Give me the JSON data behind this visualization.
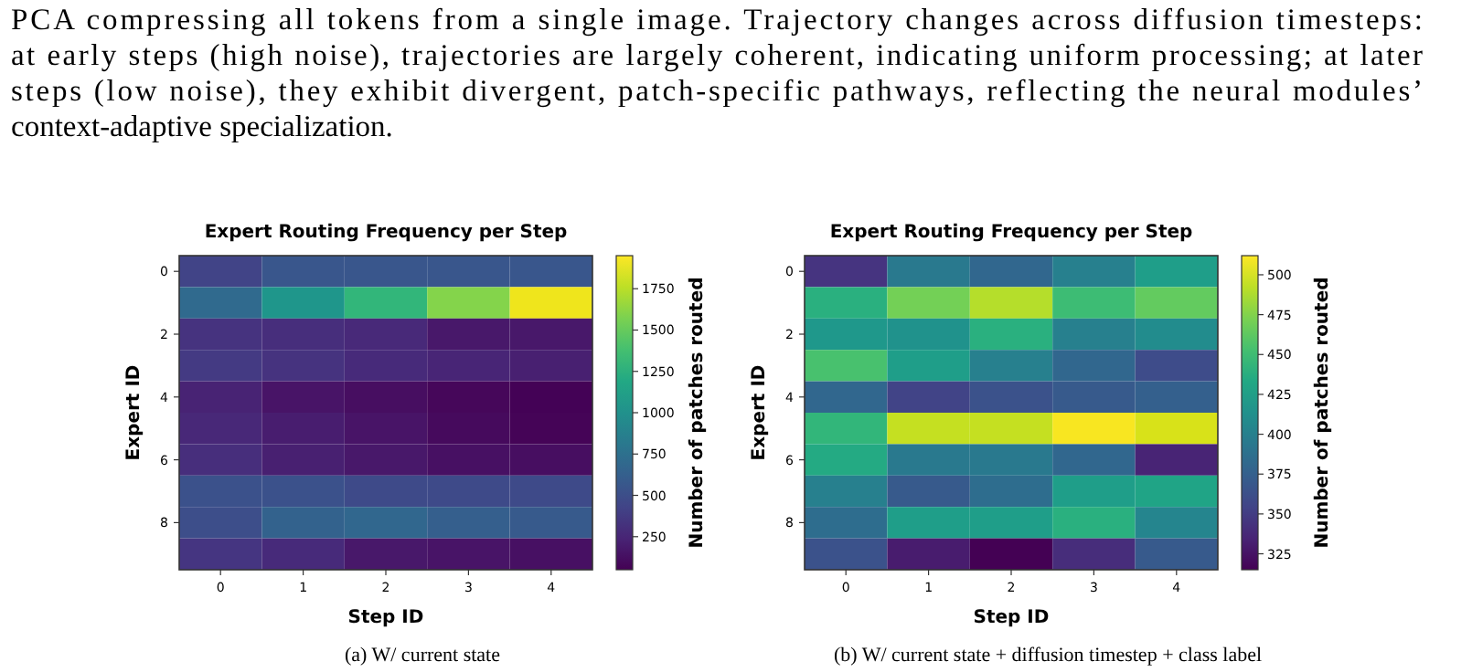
{
  "chart_data": [
    {
      "type": "heatmap",
      "title": "Expert Routing Frequency per Step",
      "xlabel": "Step ID",
      "ylabel": "Expert ID",
      "clabel": "Number of patches routed",
      "categories": [
        "0",
        "1",
        "2",
        "3",
        "4"
      ],
      "y_categories": [
        "0",
        null,
        "2",
        null,
        "4",
        null,
        "6",
        null,
        "8",
        null
      ],
      "cells": [
        [
          430,
          560,
          560,
          560,
          560
        ],
        [
          700,
          1050,
          1300,
          1600,
          1900
        ],
        [
          330,
          300,
          270,
          170,
          170
        ],
        [
          370,
          330,
          280,
          250,
          220
        ],
        [
          230,
          150,
          120,
          80,
          60
        ],
        [
          260,
          200,
          150,
          100,
          70
        ],
        [
          300,
          220,
          170,
          130,
          120
        ],
        [
          520,
          520,
          480,
          480,
          480
        ],
        [
          500,
          640,
          680,
          620,
          580
        ],
        [
          340,
          280,
          170,
          150,
          130
        ]
      ],
      "clim": [
        50,
        1950
      ],
      "cticks": [
        250,
        500,
        750,
        1000,
        1250,
        1500,
        1750
      ],
      "annotations": [
        "PCA compressing all tokens from a single image. Trajectory changes across diffusion timesteps:",
        "at early steps (high noise), trajectories are largely coherent, indicating uniform processing; at later",
        "steps (low noise), they exhibit divergent, patch-specific pathways, reflecting the neural modules’",
        "context-adaptive specialization.",
        "(a) W/ current state"
      ]
    },
    {
      "type": "heatmap",
      "title": "Expert Routing Frequency per Step",
      "xlabel": "Step ID",
      "ylabel": "Expert ID",
      "clabel": "Number of patches routed",
      "categories": [
        "0",
        "1",
        "2",
        "3",
        "4"
      ],
      "y_categories": [
        "0",
        null,
        "2",
        null,
        "4",
        null,
        "6",
        null,
        "8",
        null
      ],
      "cells": [
        [
          345,
          395,
          380,
          400,
          425
        ],
        [
          440,
          470,
          490,
          450,
          465
        ],
        [
          420,
          415,
          440,
          400,
          410
        ],
        [
          455,
          425,
          400,
          380,
          360
        ],
        [
          380,
          355,
          365,
          370,
          375
        ],
        [
          445,
          495,
          495,
          510,
          500
        ],
        [
          435,
          395,
          395,
          380,
          335
        ],
        [
          400,
          370,
          385,
          425,
          430
        ],
        [
          385,
          425,
          425,
          440,
          405
        ],
        [
          365,
          330,
          315,
          340,
          370
        ]
      ],
      "clim": [
        315,
        512
      ],
      "cticks": [
        325,
        350,
        375,
        400,
        425,
        450,
        475,
        500
      ],
      "annotations": [
        "(b) W/ current state + diffusion timestep + class label"
      ]
    }
  ]
}
